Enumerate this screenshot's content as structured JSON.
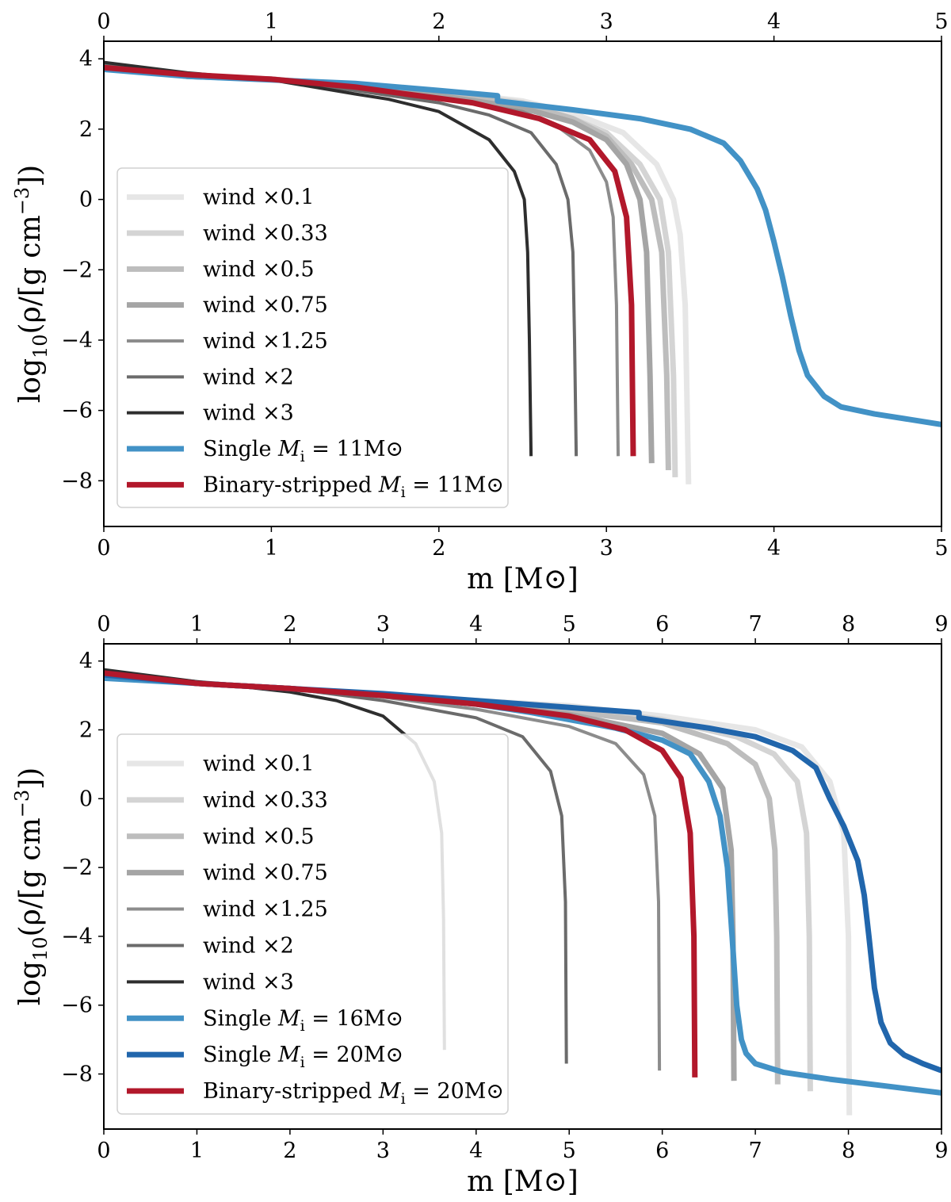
{
  "chart_data": [
    {
      "type": "line",
      "xlabel": "m [M⊙]",
      "ylabel": "log10(ρ/[g cm−3])",
      "xlim": [
        0,
        5
      ],
      "ylim": [
        -9.3,
        4.5
      ],
      "xticks": [
        0,
        1,
        2,
        3,
        4,
        5
      ],
      "yticks": [
        -8,
        -6,
        -4,
        -2,
        0,
        2,
        4
      ],
      "secondary_x_axis": "top, same ticks",
      "legend_position": "lower-left",
      "series": [
        {
          "name": "wind ×0.1",
          "color": "#e6e6e6",
          "width": 7,
          "x": [
            0,
            0.5,
            1.0,
            1.5,
            2.0,
            2.5,
            2.8,
            3.1,
            3.3,
            3.4,
            3.44,
            3.47,
            3.48,
            3.49
          ],
          "y": [
            3.8,
            3.5,
            3.42,
            3.25,
            3.08,
            2.8,
            2.45,
            1.9,
            1.0,
            0.0,
            -1.0,
            -3.0,
            -5.5,
            -8.1
          ]
        },
        {
          "name": "wind ×0.33",
          "color": "#d4d4d4",
          "width": 7,
          "x": [
            0,
            0.5,
            1.0,
            1.5,
            2.0,
            2.5,
            2.8,
            3.0,
            3.2,
            3.32,
            3.37,
            3.4,
            3.41
          ],
          "y": [
            3.8,
            3.5,
            3.42,
            3.25,
            3.05,
            2.75,
            2.3,
            1.9,
            1.0,
            0.0,
            -1.5,
            -5.0,
            -7.9
          ]
        },
        {
          "name": "wind ×0.5",
          "color": "#bdbdbd",
          "width": 7,
          "x": [
            0,
            0.5,
            1.0,
            1.5,
            2.0,
            2.5,
            2.8,
            3.0,
            3.15,
            3.27,
            3.33,
            3.36,
            3.37
          ],
          "y": [
            3.8,
            3.5,
            3.42,
            3.2,
            3.0,
            2.7,
            2.3,
            1.8,
            1.0,
            0.0,
            -1.5,
            -5.0,
            -7.7
          ]
        },
        {
          "name": "wind ×0.75",
          "color": "#a5a5a5",
          "width": 7,
          "x": [
            0,
            0.5,
            1.0,
            1.5,
            2.0,
            2.5,
            2.8,
            3.0,
            3.12,
            3.2,
            3.24,
            3.26,
            3.27
          ],
          "y": [
            3.8,
            3.5,
            3.42,
            3.2,
            2.95,
            2.6,
            2.2,
            1.7,
            1.0,
            0.0,
            -1.5,
            -5.0,
            -7.5
          ]
        },
        {
          "name": "wind ×1.25",
          "color": "#8c8c8c",
          "width": 4,
          "x": [
            0,
            0.5,
            1.0,
            1.5,
            2.0,
            2.5,
            2.7,
            2.9,
            3.0,
            3.04,
            3.06,
            3.07
          ],
          "y": [
            3.8,
            3.5,
            3.42,
            3.15,
            2.9,
            2.5,
            2.1,
            1.4,
            0.5,
            -0.5,
            -3.0,
            -7.3
          ]
        },
        {
          "name": "wind ×2",
          "color": "#6b6b6b",
          "width": 4,
          "x": [
            0,
            0.5,
            1.0,
            1.5,
            2.0,
            2.3,
            2.55,
            2.7,
            2.77,
            2.8,
            2.81,
            2.82
          ],
          "y": [
            3.85,
            3.55,
            3.42,
            3.1,
            2.75,
            2.4,
            1.9,
            1.0,
            0.0,
            -1.5,
            -4.0,
            -7.3
          ]
        },
        {
          "name": "wind ×3",
          "color": "#2e2e2e",
          "width": 4,
          "x": [
            0,
            0.5,
            1.0,
            1.5,
            1.7,
            2.0,
            2.3,
            2.45,
            2.51,
            2.53,
            2.54,
            2.55
          ],
          "y": [
            3.9,
            3.6,
            3.4,
            3.0,
            2.85,
            2.5,
            1.7,
            0.8,
            0.0,
            -1.5,
            -4.0,
            -7.3
          ]
        },
        {
          "name": "Single Mi = 11M⊙",
          "color": "#4292c6",
          "width": 7,
          "x": [
            0,
            0.5,
            1.0,
            1.5,
            2.0,
            2.35,
            2.35,
            2.8,
            3.2,
            3.5,
            3.7,
            3.8,
            3.9,
            3.95,
            4.0,
            4.05,
            4.1,
            4.15,
            4.2,
            4.3,
            4.4,
            4.6,
            4.8,
            5.0
          ],
          "y": [
            3.7,
            3.5,
            3.4,
            3.3,
            3.1,
            2.95,
            2.8,
            2.55,
            2.3,
            2.0,
            1.6,
            1.1,
            0.3,
            -0.3,
            -1.2,
            -2.2,
            -3.3,
            -4.3,
            -5.0,
            -5.6,
            -5.9,
            -6.1,
            -6.25,
            -6.4
          ]
        },
        {
          "name": "Binary-stripped Mi = 11M⊙",
          "color": "#b2182b",
          "width": 7,
          "x": [
            0,
            0.5,
            1.0,
            1.5,
            1.8,
            2.2,
            2.6,
            2.9,
            3.05,
            3.12,
            3.15,
            3.16
          ],
          "y": [
            3.75,
            3.55,
            3.42,
            3.2,
            3.0,
            2.75,
            2.3,
            1.7,
            0.8,
            -0.5,
            -3.0,
            -7.3
          ]
        }
      ]
    },
    {
      "type": "line",
      "xlabel": "m [M⊙]",
      "ylabel": "log10(ρ/[g cm−3])",
      "xlim": [
        0,
        9
      ],
      "ylim": [
        -9.6,
        4.5
      ],
      "xticks": [
        0,
        1,
        2,
        3,
        4,
        5,
        6,
        7,
        8,
        9
      ],
      "yticks": [
        -8,
        -6,
        -4,
        -2,
        0,
        2,
        4
      ],
      "secondary_x_axis": "top, same ticks",
      "legend_position": "lower-left",
      "series": [
        {
          "name": "wind ×0.1",
          "color": "#e6e6e6",
          "width": 7,
          "x": [
            0,
            1,
            2,
            3,
            4,
            5,
            6,
            7,
            7.5,
            7.8,
            7.95,
            8.0,
            8.01
          ],
          "y": [
            3.6,
            3.35,
            3.2,
            3.0,
            2.85,
            2.7,
            2.4,
            2.0,
            1.5,
            0.5,
            -1.0,
            -4.0,
            -9.2
          ]
        },
        {
          "name": "wind ×0.33",
          "color": "#d4d4d4",
          "width": 7,
          "x": [
            0,
            1,
            2,
            3,
            4,
            5,
            6,
            6.8,
            7.2,
            7.45,
            7.55,
            7.58,
            7.59
          ],
          "y": [
            3.6,
            3.35,
            3.2,
            3.0,
            2.85,
            2.65,
            2.3,
            1.8,
            1.3,
            0.5,
            -1.0,
            -4.0,
            -8.5
          ]
        },
        {
          "name": "wind ×0.5",
          "color": "#bdbdbd",
          "width": 7,
          "x": [
            0,
            1,
            2,
            3,
            4,
            5,
            6,
            6.7,
            7.0,
            7.15,
            7.21,
            7.23,
            7.24
          ],
          "y": [
            3.6,
            3.35,
            3.2,
            3.0,
            2.8,
            2.55,
            2.2,
            1.6,
            1.0,
            0.0,
            -1.5,
            -4.0,
            -8.3
          ]
        },
        {
          "name": "wind ×0.75",
          "color": "#a5a5a5",
          "width": 7,
          "x": [
            0,
            1,
            2,
            3,
            4,
            5,
            6,
            6.4,
            6.65,
            6.74,
            6.76,
            6.77
          ],
          "y": [
            3.6,
            3.35,
            3.2,
            3.0,
            2.75,
            2.45,
            1.9,
            1.3,
            0.3,
            -1.5,
            -4.0,
            -8.2
          ]
        },
        {
          "name": "wind ×1.25",
          "color": "#8c8c8c",
          "width": 4,
          "x": [
            0,
            1,
            2,
            3,
            4,
            5,
            5.5,
            5.8,
            5.92,
            5.96,
            5.97
          ],
          "y": [
            3.65,
            3.35,
            3.2,
            2.95,
            2.6,
            2.1,
            1.6,
            0.7,
            -0.5,
            -3.0,
            -7.9
          ]
        },
        {
          "name": "wind ×2",
          "color": "#6b6b6b",
          "width": 4,
          "x": [
            0,
            1,
            2,
            3,
            4,
            4.5,
            4.8,
            4.92,
            4.96,
            4.97
          ],
          "y": [
            3.7,
            3.4,
            3.2,
            2.85,
            2.35,
            1.8,
            0.8,
            -0.5,
            -3.0,
            -7.7
          ]
        },
        {
          "name": "wind ×3",
          "color": "#2e2e2e",
          "width": 4,
          "x": [
            0,
            1,
            2,
            2.5,
            3.0,
            3.35,
            3.55,
            3.63,
            3.65,
            3.66
          ],
          "y": [
            3.75,
            3.4,
            3.1,
            2.85,
            2.4,
            1.6,
            0.5,
            -1.0,
            -3.5,
            -7.3
          ]
        },
        {
          "name": "Single Mi = 16M⊙",
          "color": "#4292c6",
          "width": 7,
          "x": [
            0,
            1,
            2,
            3,
            4,
            4.6,
            5.0,
            5.5,
            6.0,
            6.3,
            6.5,
            6.62,
            6.7,
            6.75,
            6.8,
            6.85,
            6.9,
            7.0,
            7.3,
            7.8,
            8.4,
            9.0
          ],
          "y": [
            3.5,
            3.35,
            3.2,
            3.0,
            2.75,
            2.5,
            2.3,
            2.05,
            1.7,
            1.3,
            0.5,
            -0.5,
            -2.0,
            -4.0,
            -6.0,
            -7.0,
            -7.4,
            -7.7,
            -7.95,
            -8.15,
            -8.35,
            -8.55
          ]
        },
        {
          "name": "Single Mi = 20M⊙",
          "color": "#2166ac",
          "width": 7,
          "x": [
            0,
            1,
            2,
            3,
            4,
            5,
            5.75,
            5.75,
            6.5,
            7.0,
            7.4,
            7.65,
            7.8,
            7.95,
            8.1,
            8.17,
            8.22,
            8.28,
            8.35,
            8.45,
            8.6,
            8.8,
            9.0
          ],
          "y": [
            3.6,
            3.35,
            3.2,
            3.05,
            2.85,
            2.65,
            2.5,
            2.35,
            2.05,
            1.8,
            1.4,
            0.9,
            0.0,
            -0.8,
            -1.8,
            -2.8,
            -4.0,
            -5.5,
            -6.5,
            -7.1,
            -7.45,
            -7.7,
            -7.9
          ]
        },
        {
          "name": "Binary-stripped Mi = 20M⊙",
          "color": "#b2182b",
          "width": 7,
          "x": [
            0,
            1,
            2,
            3,
            4,
            5,
            5.6,
            6.0,
            6.2,
            6.3,
            6.34,
            6.35
          ],
          "y": [
            3.65,
            3.35,
            3.2,
            3.0,
            2.75,
            2.4,
            2.0,
            1.4,
            0.6,
            -1.0,
            -4.0,
            -8.1
          ]
        }
      ]
    }
  ]
}
